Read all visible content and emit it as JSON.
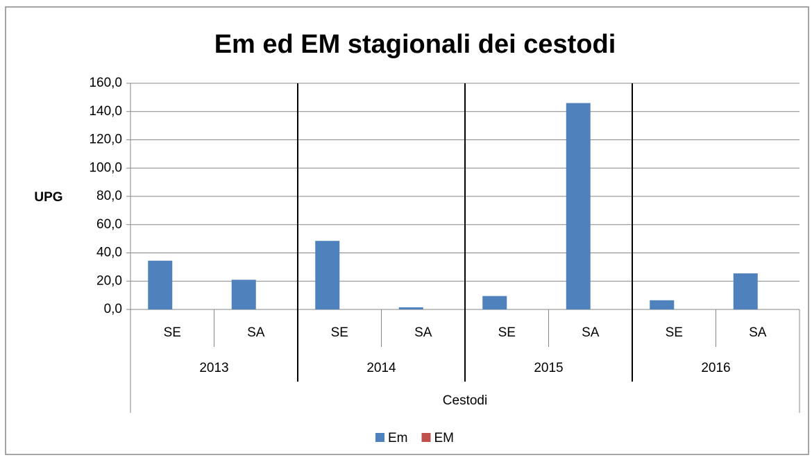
{
  "chart_data": {
    "type": "bar",
    "title": "Em ed EM stagionali dei cestodi",
    "ylabel": "UPG",
    "xlabel": "Cestodi",
    "groups": [
      "2013",
      "2014",
      "2015",
      "2016"
    ],
    "categories": [
      "SE",
      "SA",
      "SE",
      "SA",
      "SE",
      "SA",
      "SE",
      "SA"
    ],
    "series": [
      {
        "name": "Em",
        "color": "#4f81bd",
        "values": [
          34.5,
          21,
          48.5,
          1.5,
          9.5,
          146,
          6.5,
          25.5
        ]
      },
      {
        "name": "EM",
        "color": "#c0504d",
        "values": [
          0,
          0,
          0,
          0,
          0,
          0,
          0,
          0
        ]
      }
    ],
    "ylim": [
      0,
      160
    ],
    "yticks": [
      {
        "value": 0,
        "label": "0,0"
      },
      {
        "value": 20,
        "label": "20,0"
      },
      {
        "value": 40,
        "label": "40,0"
      },
      {
        "value": 60,
        "label": "60,0"
      },
      {
        "value": 80,
        "label": "80,0"
      },
      {
        "value": 100,
        "label": "100,0"
      },
      {
        "value": 120,
        "label": "120,0"
      },
      {
        "value": 140,
        "label": "140,0"
      },
      {
        "value": 160,
        "label": "160,0"
      }
    ],
    "grid": true,
    "legend": "bottom"
  }
}
